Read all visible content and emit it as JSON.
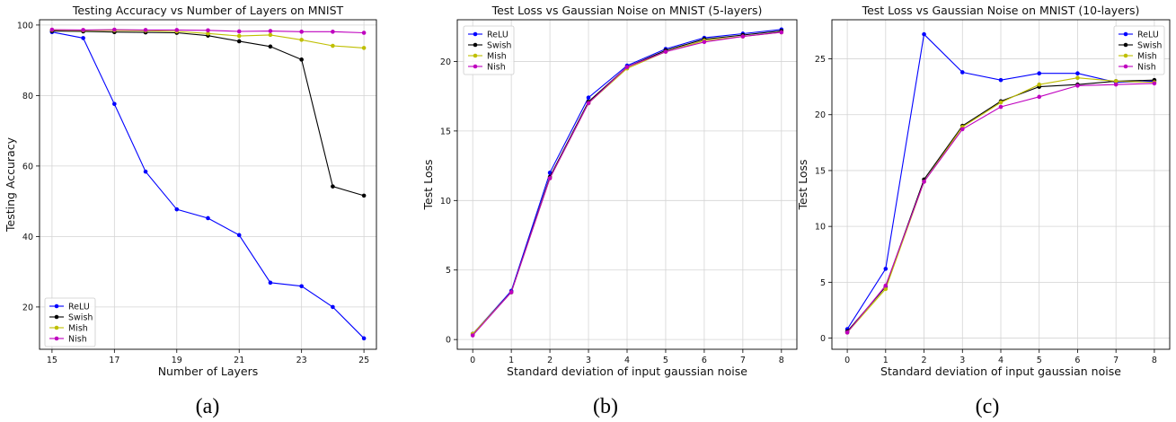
{
  "chart_data": [
    {
      "type": "line",
      "title": "Testing Accuracy vs Number of Layers on MNIST",
      "xlabel": "Number of Layers",
      "ylabel": "Testing Accuracy",
      "caption": "(a)",
      "xlim": [
        14.6,
        25.4
      ],
      "ylim": [
        8.0,
        101.5
      ],
      "xticks": [
        15,
        17,
        19,
        21,
        23,
        25
      ],
      "yticks": [
        20,
        40,
        60,
        80,
        100
      ],
      "grid": true,
      "legend": "lower-left",
      "x": [
        15,
        16,
        17,
        18,
        19,
        20,
        21,
        22,
        23,
        24,
        25
      ],
      "series": [
        {
          "name": "ReLU",
          "color": "#0000ff",
          "values": [
            98.0,
            96.3,
            77.6,
            58.4,
            47.7,
            45.2,
            40.4,
            26.9,
            25.9,
            20.0,
            11.1
          ]
        },
        {
          "name": "Swish",
          "color": "#000000",
          "values": [
            98.3,
            98.2,
            98.0,
            97.9,
            97.8,
            97.0,
            95.4,
            93.9,
            90.2,
            54.2,
            51.6
          ]
        },
        {
          "name": "Mish",
          "color": "#bfbf00",
          "values": [
            98.6,
            98.5,
            98.5,
            98.4,
            98.2,
            97.6,
            96.9,
            97.2,
            95.8,
            94.1,
            93.5
          ]
        },
        {
          "name": "Nish",
          "color": "#bf00bf",
          "values": [
            98.7,
            98.6,
            98.7,
            98.6,
            98.6,
            98.5,
            98.2,
            98.3,
            98.1,
            98.1,
            97.8
          ]
        }
      ]
    },
    {
      "type": "line",
      "title": "Test Loss vs Gaussian Noise on MNIST (5-layers)",
      "xlabel": "Standard deviation of input gaussian noise",
      "ylabel": "Test Loss",
      "caption": "(b)",
      "xlim": [
        -0.4,
        8.4
      ],
      "ylim": [
        -0.7,
        23.0
      ],
      "xticks": [
        0,
        1,
        2,
        3,
        4,
        5,
        6,
        7,
        8
      ],
      "yticks": [
        0,
        5,
        10,
        15,
        20
      ],
      "grid": true,
      "legend": "upper-left",
      "x": [
        0,
        1,
        2,
        3,
        4,
        5,
        6,
        7,
        8
      ],
      "series": [
        {
          "name": "ReLU",
          "color": "#0000ff",
          "values": [
            0.4,
            3.5,
            12.0,
            17.4,
            19.7,
            20.9,
            21.7,
            22.0,
            22.3
          ]
        },
        {
          "name": "Swish",
          "color": "#000000",
          "values": [
            0.4,
            3.4,
            11.7,
            17.1,
            19.6,
            20.8,
            21.6,
            21.9,
            22.2
          ]
        },
        {
          "name": "Mish",
          "color": "#bfbf00",
          "values": [
            0.4,
            3.4,
            11.6,
            17.0,
            19.5,
            20.7,
            21.5,
            21.8,
            22.1
          ]
        },
        {
          "name": "Nish",
          "color": "#bf00bf",
          "values": [
            0.3,
            3.4,
            11.6,
            17.0,
            19.6,
            20.7,
            21.4,
            21.8,
            22.1
          ]
        }
      ]
    },
    {
      "type": "line",
      "title": "Test Loss vs Gaussian Noise on MNIST (10-layers)",
      "xlabel": "Standard deviation of input gaussian noise",
      "ylabel": "Test Loss",
      "caption": "(c)",
      "xlim": [
        -0.4,
        8.4
      ],
      "ylim": [
        -1.0,
        28.5
      ],
      "xticks": [
        0,
        1,
        2,
        3,
        4,
        5,
        6,
        7,
        8
      ],
      "yticks": [
        0,
        5,
        10,
        15,
        20,
        25
      ],
      "grid": true,
      "legend": "upper-right",
      "x": [
        0,
        1,
        2,
        3,
        4,
        5,
        6,
        7,
        8
      ],
      "series": [
        {
          "name": "ReLU",
          "color": "#0000ff",
          "values": [
            0.8,
            6.2,
            27.2,
            23.8,
            23.1,
            23.7,
            23.7,
            22.9,
            23.0
          ]
        },
        {
          "name": "Swish",
          "color": "#000000",
          "values": [
            0.6,
            4.6,
            14.2,
            19.0,
            21.2,
            22.5,
            22.7,
            23.0,
            23.1
          ]
        },
        {
          "name": "Mish",
          "color": "#bfbf00",
          "values": [
            0.5,
            4.4,
            14.0,
            18.9,
            21.1,
            22.7,
            23.3,
            23.0,
            22.9
          ]
        },
        {
          "name": "Nish",
          "color": "#bf00bf",
          "values": [
            0.5,
            4.7,
            14.0,
            18.7,
            20.7,
            21.6,
            22.6,
            22.7,
            22.8
          ]
        }
      ]
    }
  ]
}
